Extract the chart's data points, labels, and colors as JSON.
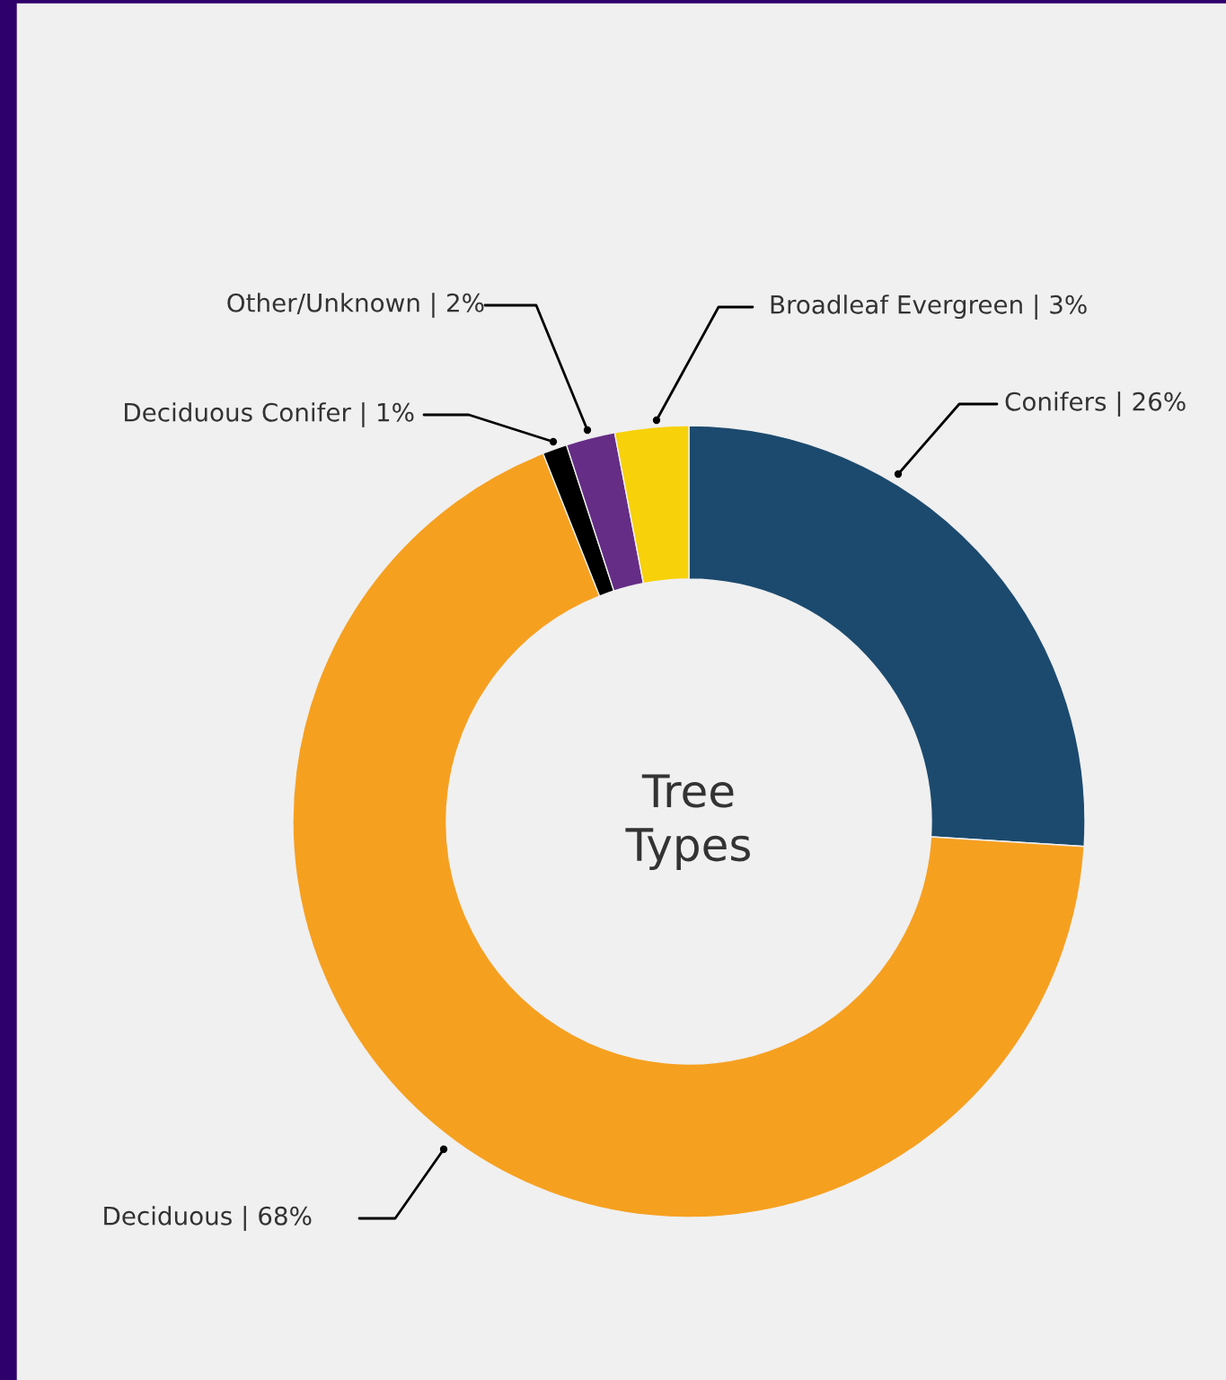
{
  "chart_data": {
    "type": "donut",
    "title": "Tree Types",
    "categories": [
      "Conifers | 26%",
      "Deciduous | 68%",
      "Deciduous Conifer | 1%",
      "Other/Unknown | 2%",
      "Broadleaf Evergreen | 3%"
    ],
    "values": [
      26,
      68,
      1,
      2,
      3
    ],
    "colors": [
      "#1c4a6e",
      "#f6a020",
      "#000000",
      "#652d86",
      "#f7d10a"
    ]
  }
}
